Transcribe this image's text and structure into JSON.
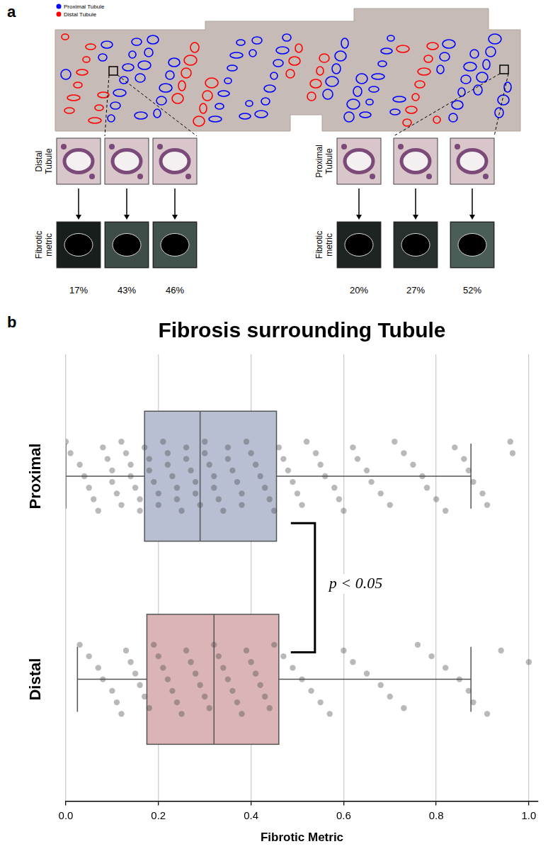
{
  "panel_a": {
    "letter": "a",
    "legend": [
      {
        "name": "Proximal Tubule",
        "color": "#0000ff"
      },
      {
        "name": "Distal Tubule",
        "color": "#ff0000"
      }
    ],
    "groups": [
      {
        "row_labels": [
          "Distal Tubule",
          "Fibrotic metric"
        ],
        "fibrotic_metric": [
          {
            "value": 17,
            "label": "17%"
          },
          {
            "value": 43,
            "label": "43%"
          },
          {
            "value": 46,
            "label": "46%"
          }
        ]
      },
      {
        "row_labels": [
          "Proximal Tubule",
          "Fibrotic metric"
        ],
        "fibrotic_metric": [
          {
            "value": 20,
            "label": "20%"
          },
          {
            "value": 27,
            "label": "27%"
          },
          {
            "value": 52,
            "label": "52%"
          }
        ]
      }
    ]
  },
  "panel_b": {
    "letter": "b"
  },
  "chart_data": {
    "type": "box",
    "orientation": "horizontal",
    "grid": true,
    "title": "Fibrosis surrounding Tubule",
    "x_label": "Fibrotic Metric",
    "xlim": [
      0,
      1.02
    ],
    "xticks": [
      {
        "value": 0,
        "label": "0.0"
      },
      0.2,
      0.4,
      0.6,
      0.8,
      {
        "value": 1,
        "label": "1.0"
      }
    ],
    "annotations": [
      "p < 0.05"
    ],
    "series": [
      {
        "name": "Proximal",
        "color": "#b8bfd3",
        "box": {
          "whislo": 0.0,
          "q1": 0.17,
          "median": 0.29,
          "q3": 0.455,
          "whishi": 0.875
        },
        "values": [
          0.0,
          0.01,
          0.03,
          0.04,
          0.05,
          0.06,
          0.07,
          0.08,
          0.09,
          0.1,
          0.1,
          0.11,
          0.12,
          0.12,
          0.13,
          0.14,
          0.14,
          0.15,
          0.16,
          0.16,
          0.17,
          0.18,
          0.18,
          0.19,
          0.2,
          0.2,
          0.21,
          0.22,
          0.22,
          0.23,
          0.24,
          0.24,
          0.25,
          0.26,
          0.26,
          0.27,
          0.28,
          0.28,
          0.29,
          0.3,
          0.3,
          0.31,
          0.32,
          0.32,
          0.33,
          0.34,
          0.35,
          0.35,
          0.36,
          0.37,
          0.38,
          0.38,
          0.39,
          0.4,
          0.41,
          0.42,
          0.43,
          0.44,
          0.45,
          0.46,
          0.47,
          0.48,
          0.49,
          0.5,
          0.51,
          0.52,
          0.54,
          0.55,
          0.56,
          0.58,
          0.59,
          0.6,
          0.62,
          0.63,
          0.65,
          0.66,
          0.68,
          0.7,
          0.71,
          0.73,
          0.75,
          0.77,
          0.78,
          0.8,
          0.82,
          0.84,
          0.86,
          0.87,
          0.88,
          0.9,
          0.91,
          0.96,
          0.965
        ]
      },
      {
        "name": "Distal",
        "color": "#dbb5b5",
        "box": {
          "whislo": 0.025,
          "q1": 0.175,
          "median": 0.32,
          "q3": 0.46,
          "whishi": 0.875
        },
        "values": [
          0.03,
          0.05,
          0.07,
          0.08,
          0.1,
          0.11,
          0.12,
          0.13,
          0.14,
          0.15,
          0.16,
          0.17,
          0.18,
          0.19,
          0.2,
          0.21,
          0.22,
          0.23,
          0.24,
          0.25,
          0.26,
          0.27,
          0.28,
          0.29,
          0.3,
          0.31,
          0.32,
          0.33,
          0.34,
          0.35,
          0.36,
          0.37,
          0.38,
          0.39,
          0.4,
          0.41,
          0.42,
          0.43,
          0.44,
          0.45,
          0.47,
          0.49,
          0.51,
          0.53,
          0.55,
          0.57,
          0.6,
          0.62,
          0.65,
          0.68,
          0.7,
          0.73,
          0.76,
          0.79,
          0.82,
          0.85,
          0.87,
          0.88,
          0.91,
          0.94,
          1.0
        ]
      }
    ]
  }
}
